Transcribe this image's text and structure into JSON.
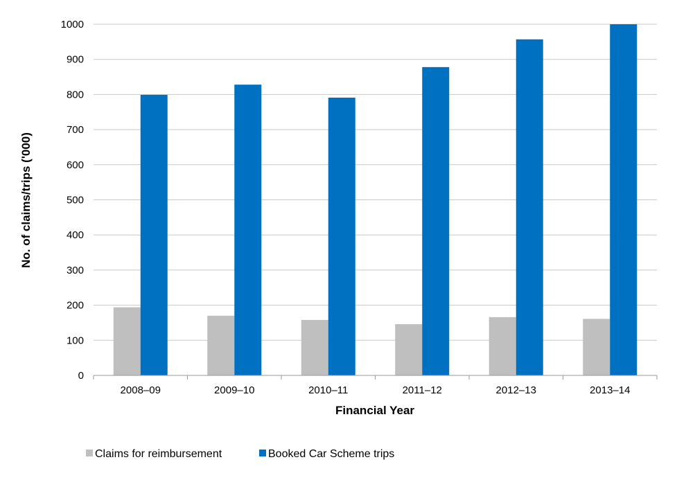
{
  "chart_data": {
    "type": "bar",
    "categories": [
      "2008–09",
      "2009–10",
      "2010–11",
      "2011–12",
      "2012–13",
      "2013–14"
    ],
    "series": [
      {
        "name": "Claims for reimbursement",
        "values": [
          194,
          170,
          158,
          146,
          166,
          161
        ],
        "color": "#bfbfbf"
      },
      {
        "name": "Booked Car Scheme trips",
        "values": [
          799,
          828,
          791,
          878,
          957,
          1000
        ],
        "color": "#0070c0"
      }
    ],
    "xlabel": "Financial Year",
    "ylabel": "No. of claims/trips ('000)",
    "ylim": [
      0,
      1000
    ],
    "yticks": [
      0,
      100,
      200,
      300,
      400,
      500,
      600,
      700,
      800,
      900,
      1000
    ],
    "grid": true,
    "legend_position": "bottom-left"
  }
}
